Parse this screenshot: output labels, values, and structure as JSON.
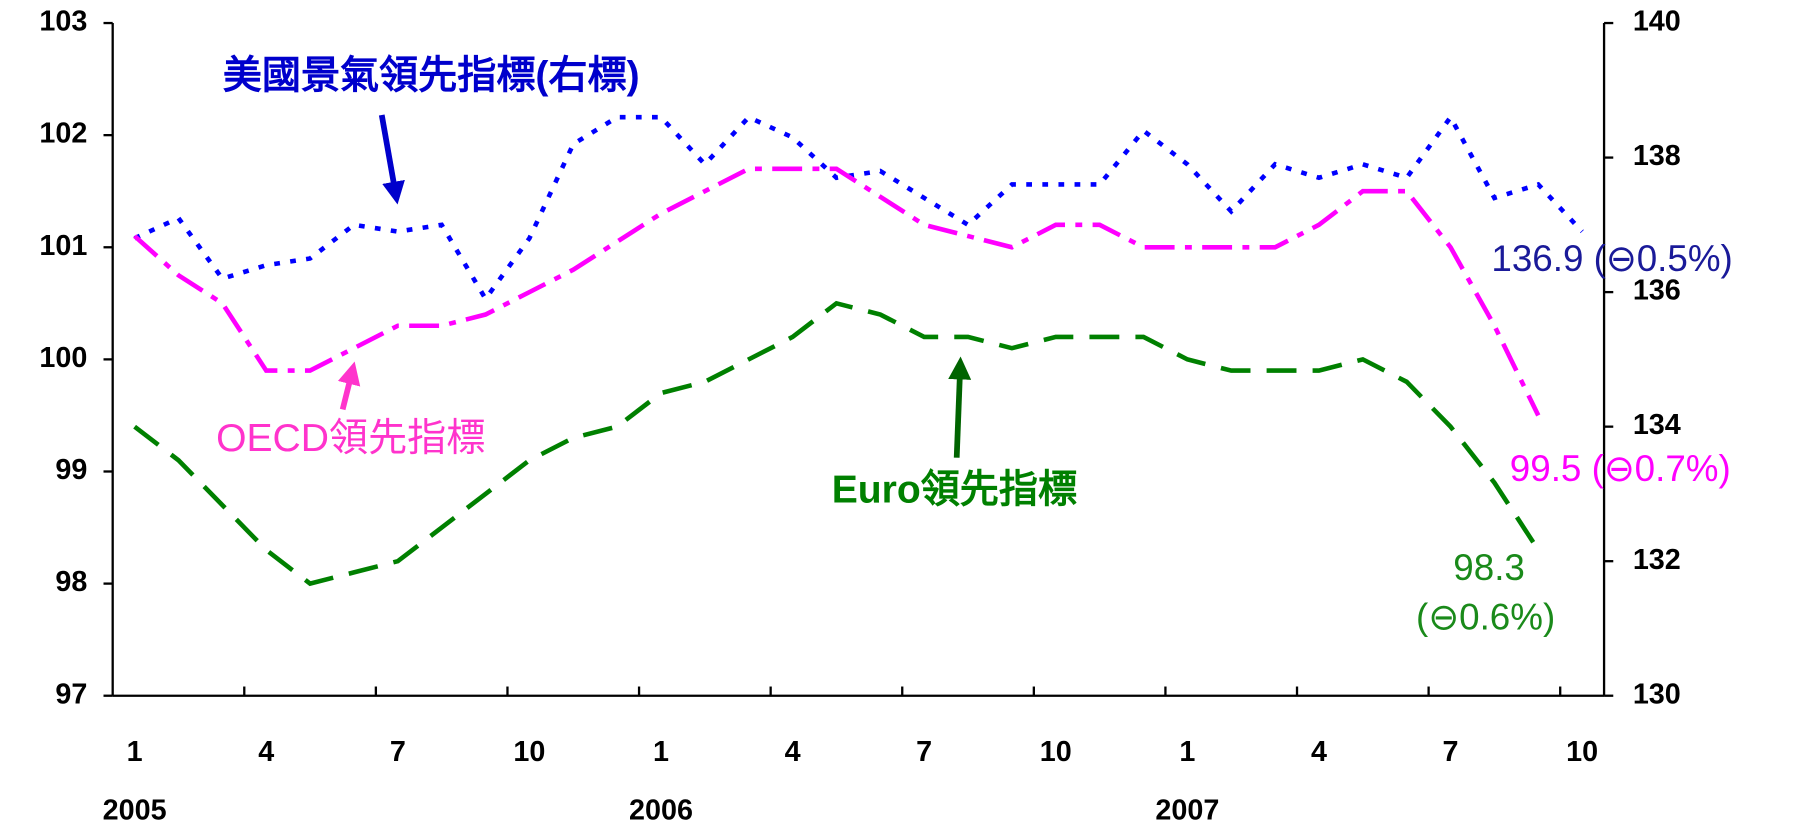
{
  "chart_data": {
    "type": "line",
    "categories": [
      "1",
      null,
      null,
      "4",
      null,
      null,
      "7",
      null,
      null,
      "10",
      null,
      null,
      "1",
      null,
      null,
      "4",
      null,
      null,
      "7",
      null,
      null,
      "10",
      null,
      null,
      "1",
      null,
      null,
      "4",
      null,
      null,
      "7",
      null,
      null,
      "10"
    ],
    "years": [
      "2005",
      "2006",
      "2007"
    ],
    "ylim": [
      97,
      103
    ],
    "yticks": [
      97,
      98,
      99,
      100,
      101,
      102,
      103
    ],
    "y2lim": [
      130,
      140
    ],
    "y2ticks": [
      130,
      132,
      134,
      136,
      138,
      140
    ],
    "series": [
      {
        "name": "美國景氣領先指標(右標)",
        "color": "#0000ff",
        "axis": "y2",
        "values": [
          136.8,
          137.1,
          136.2,
          136.4,
          136.5,
          137.0,
          136.9,
          137.0,
          135.9,
          136.8,
          138.2,
          138.6,
          138.6,
          137.9,
          138.6,
          138.3,
          137.7,
          137.8,
          137.4,
          137.0,
          137.6,
          137.6,
          137.6,
          138.4,
          137.9,
          137.2,
          137.9,
          137.7,
          137.9,
          137.7,
          138.6,
          137.4,
          137.6,
          136.9
        ]
      },
      {
        "name": "OECD領先指標",
        "color": "#ff00ff",
        "values": [
          101.1,
          100.75,
          100.5,
          99.9,
          99.9,
          100.1,
          100.3,
          100.3,
          100.4,
          100.6,
          100.8,
          101.05,
          101.3,
          101.5,
          101.7,
          101.7,
          101.7,
          101.45,
          101.2,
          101.1,
          101.0,
          101.2,
          101.2,
          101.0,
          101.0,
          101.0,
          101.0,
          101.2,
          101.5,
          101.5,
          101.0,
          100.3,
          99.5,
          null
        ]
      },
      {
        "name": "Euro領先指標",
        "color": "#008000",
        "values": [
          99.4,
          99.1,
          98.7,
          98.3,
          98.0,
          98.1,
          98.2,
          98.5,
          98.8,
          99.1,
          99.3,
          99.4,
          99.7,
          99.8,
          100.0,
          100.2,
          100.5,
          100.4,
          100.2,
          100.2,
          100.1,
          100.2,
          100.2,
          100.2,
          100.0,
          99.9,
          99.9,
          99.9,
          100.0,
          99.8,
          99.4,
          98.9,
          98.3,
          null
        ]
      }
    ],
    "annotations": [
      "136.9 (⊖0.5%)",
      "99.5 (⊖0.7%)",
      "98.3",
      "(⊖0.6%)"
    ]
  }
}
